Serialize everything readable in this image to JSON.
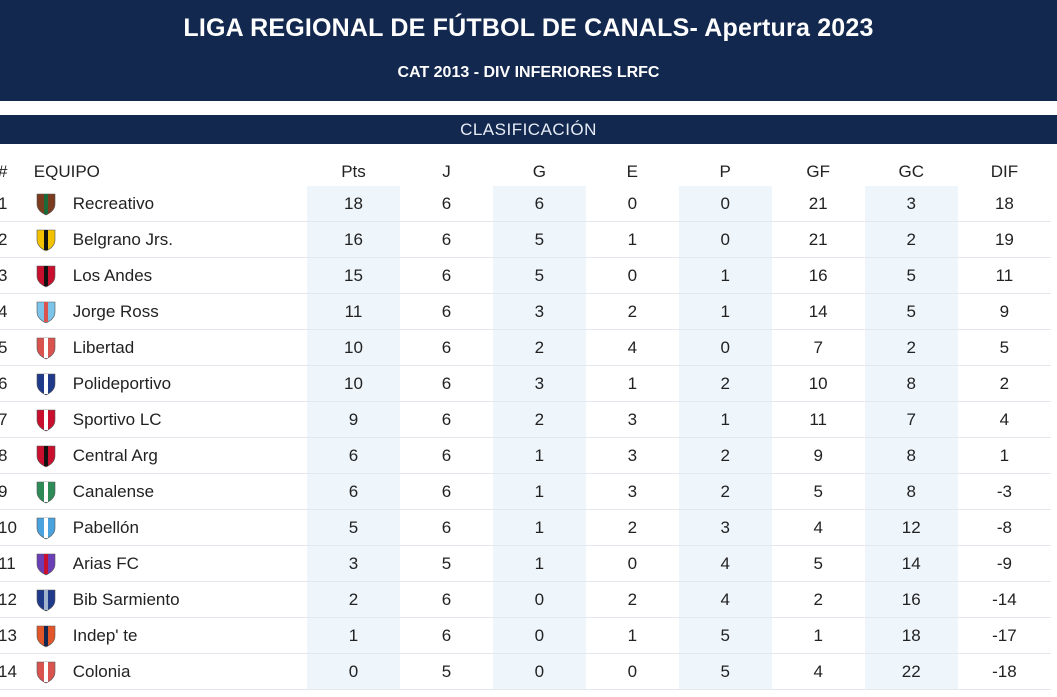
{
  "header": {
    "title": "LIGA REGIONAL DE FÚTBOL DE CANALS- Apertura 2023",
    "subtitle": "CAT 2013 - DIV INFERIORES LRFC"
  },
  "section": {
    "label": "CLASIFICACIÓN"
  },
  "table": {
    "headers": {
      "pos": "#",
      "team": "EQUIPO",
      "pts": "Pts",
      "j": "J",
      "g": "G",
      "e": "E",
      "p": "P",
      "gf": "GF",
      "gc": "GC",
      "dif": "DIF"
    },
    "rows": [
      {
        "pos": "1",
        "team": "Recreativo",
        "crest": "recreativo-crest-icon",
        "colors": [
          "#7a3b1e",
          "#1b6b3a"
        ],
        "pts": "18",
        "j": "6",
        "g": "6",
        "e": "0",
        "p": "0",
        "gf": "21",
        "gc": "3",
        "dif": "18"
      },
      {
        "pos": "2",
        "team": "Belgrano Jrs.",
        "crest": "belgrano-jrs-crest-icon",
        "colors": [
          "#f2c200",
          "#111111"
        ],
        "pts": "16",
        "j": "6",
        "g": "5",
        "e": "1",
        "p": "0",
        "gf": "21",
        "gc": "2",
        "dif": "19"
      },
      {
        "pos": "3",
        "team": "Los Andes",
        "crest": "los-andes-crest-icon",
        "colors": [
          "#c8102e",
          "#111111"
        ],
        "pts": "15",
        "j": "6",
        "g": "5",
        "e": "0",
        "p": "1",
        "gf": "16",
        "gc": "5",
        "dif": "11"
      },
      {
        "pos": "4",
        "team": "Jorge Ross",
        "crest": "jorge-ross-crest-icon",
        "colors": [
          "#7cc4ea",
          "#d9534f"
        ],
        "pts": "11",
        "j": "6",
        "g": "3",
        "e": "2",
        "p": "1",
        "gf": "14",
        "gc": "5",
        "dif": "9"
      },
      {
        "pos": "5",
        "team": "Libertad",
        "crest": "libertad-crest-icon",
        "colors": [
          "#d9534f",
          "#ffffff"
        ],
        "pts": "10",
        "j": "6",
        "g": "2",
        "e": "4",
        "p": "0",
        "gf": "7",
        "gc": "2",
        "dif": "5"
      },
      {
        "pos": "6",
        "team": "Polideportivo",
        "crest": "polideportivo-crest-icon",
        "colors": [
          "#1f3a8a",
          "#ffffff"
        ],
        "pts": "10",
        "j": "6",
        "g": "3",
        "e": "1",
        "p": "2",
        "gf": "10",
        "gc": "8",
        "dif": "2"
      },
      {
        "pos": "7",
        "team": "Sportivo LC",
        "crest": "sportivo-lc-crest-icon",
        "colors": [
          "#c8102e",
          "#ffffff"
        ],
        "pts": "9",
        "j": "6",
        "g": "2",
        "e": "3",
        "p": "1",
        "gf": "11",
        "gc": "7",
        "dif": "4"
      },
      {
        "pos": "8",
        "team": "Central Arg",
        "crest": "central-arg-crest-icon",
        "colors": [
          "#c8102e",
          "#111111"
        ],
        "pts": "6",
        "j": "6",
        "g": "1",
        "e": "3",
        "p": "2",
        "gf": "9",
        "gc": "8",
        "dif": "1"
      },
      {
        "pos": "9",
        "team": "Canalense",
        "crest": "canalense-crest-icon",
        "colors": [
          "#2e8b57",
          "#ffffff"
        ],
        "pts": "6",
        "j": "6",
        "g": "1",
        "e": "3",
        "p": "2",
        "gf": "5",
        "gc": "8",
        "dif": "-3"
      },
      {
        "pos": "10",
        "team": "Pabellón",
        "crest": "pabellon-crest-icon",
        "colors": [
          "#4aa3df",
          "#ffffff"
        ],
        "pts": "5",
        "j": "6",
        "g": "1",
        "e": "2",
        "p": "3",
        "gf": "4",
        "gc": "12",
        "dif": "-8"
      },
      {
        "pos": "11",
        "team": "Arias FC",
        "crest": "arias-fc-crest-icon",
        "colors": [
          "#6a3fb5",
          "#c8102e"
        ],
        "pts": "3",
        "j": "5",
        "g": "1",
        "e": "0",
        "p": "4",
        "gf": "5",
        "gc": "14",
        "dif": "-9"
      },
      {
        "pos": "12",
        "team": "Bib Sarmiento",
        "crest": "bib-sarmiento-crest-icon",
        "colors": [
          "#1f3a8a",
          "#9fb3cf"
        ],
        "pts": "2",
        "j": "6",
        "g": "0",
        "e": "2",
        "p": "4",
        "gf": "2",
        "gc": "16",
        "dif": "-14"
      },
      {
        "pos": "13",
        "team": "Indep' te",
        "crest": "independiente-crest-icon",
        "colors": [
          "#e2572a",
          "#13284e"
        ],
        "pts": "1",
        "j": "6",
        "g": "0",
        "e": "1",
        "p": "5",
        "gf": "1",
        "gc": "18",
        "dif": "-17"
      },
      {
        "pos": "14",
        "team": "Colonia",
        "crest": "colonia-crest-icon",
        "colors": [
          "#d9534f",
          "#ffffff"
        ],
        "pts": "0",
        "j": "5",
        "g": "0",
        "e": "0",
        "p": "5",
        "gf": "4",
        "gc": "22",
        "dif": "-18"
      }
    ]
  }
}
